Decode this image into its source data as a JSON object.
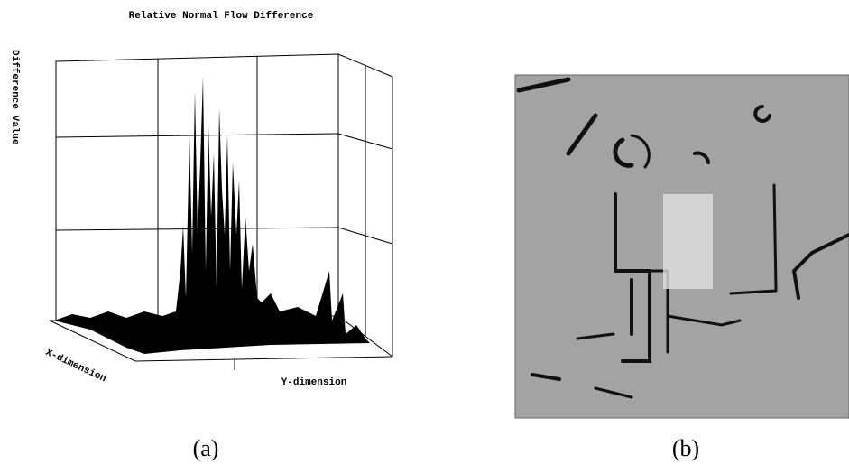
{
  "figure": {
    "panel_a": {
      "title": "Relative Normal Flow Difference",
      "z_label": "Difference Value",
      "x_label": "X-dimension",
      "y_label": "Y-dimension",
      "caption": "(a)"
    },
    "panel_b": {
      "caption": "(b)"
    }
  }
}
